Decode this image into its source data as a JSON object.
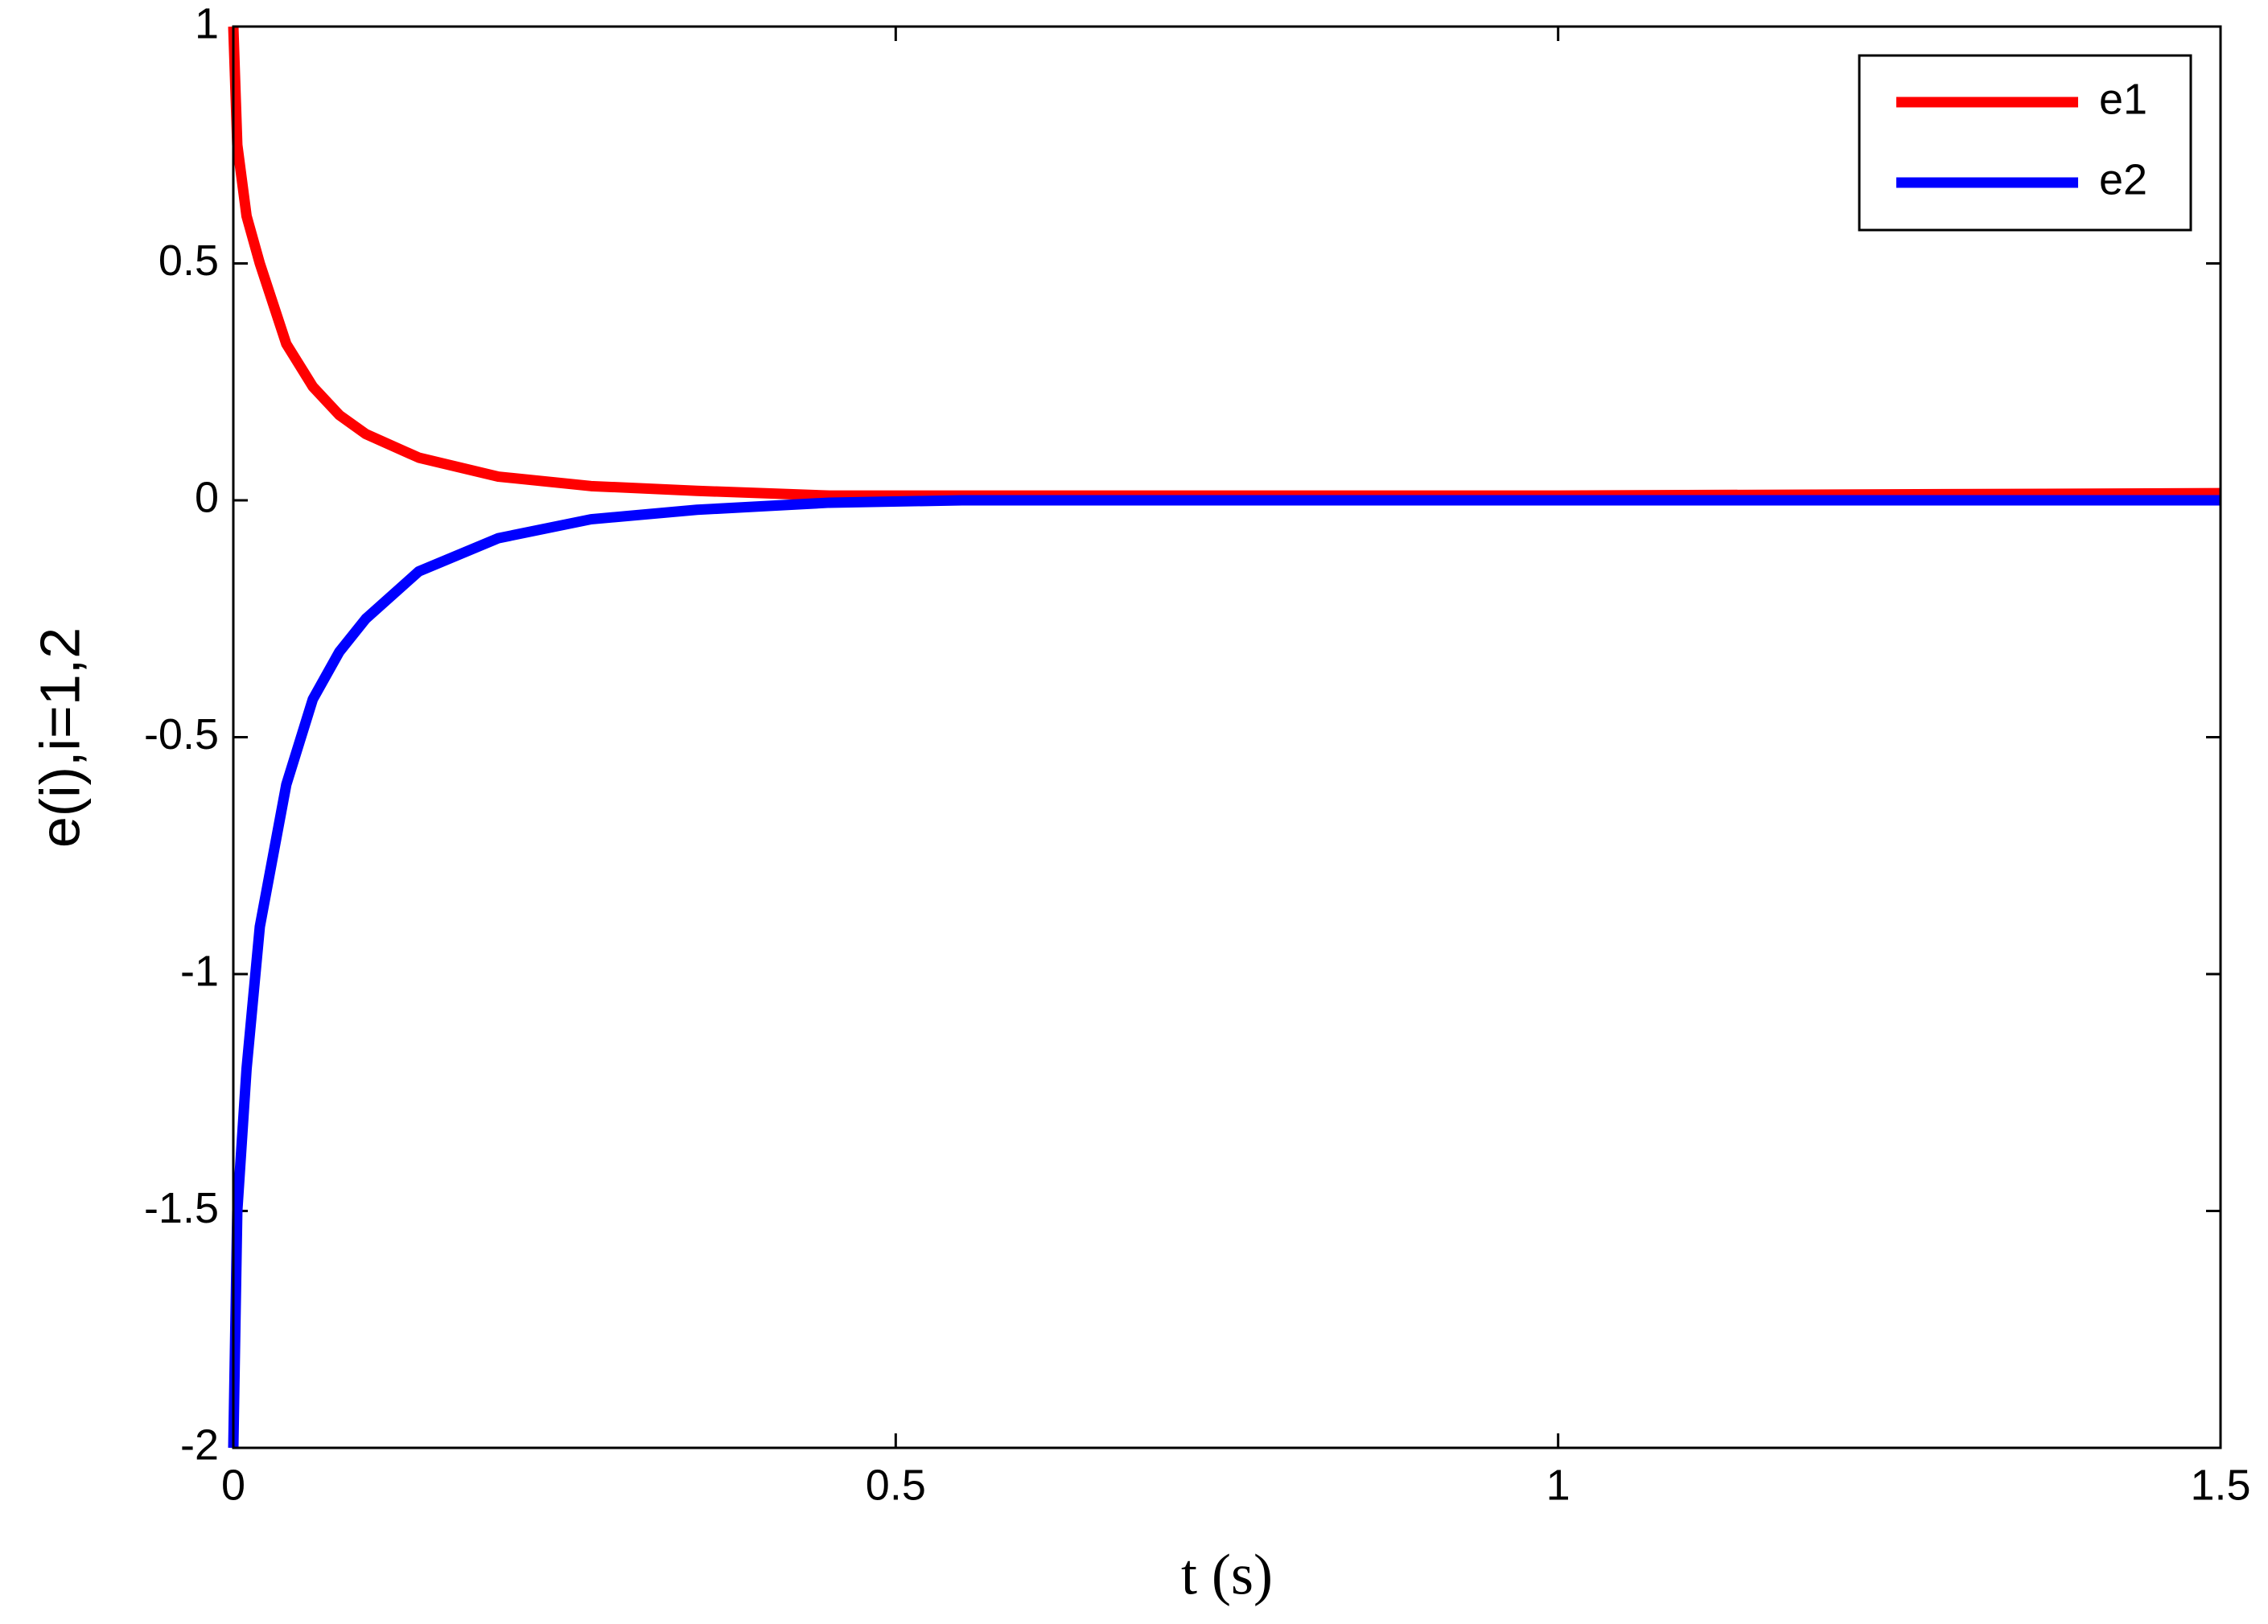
{
  "chart_data": {
    "type": "line",
    "xlabel": "t (s)",
    "ylabel": "e(i),i=1,2",
    "x": [
      0,
      0.003,
      0.01,
      0.02,
      0.04,
      0.06,
      0.08,
      0.1,
      0.14,
      0.2,
      0.27,
      0.35,
      0.45,
      0.55,
      1.0,
      1.5
    ],
    "series": [
      {
        "name": "e1",
        "color": "#ff0000",
        "values": [
          1,
          0.75,
          0.6,
          0.5,
          0.33,
          0.24,
          0.18,
          0.14,
          0.09,
          0.05,
          0.03,
          0.02,
          0.01,
          0.01,
          0.01,
          0.015
        ]
      },
      {
        "name": "e2",
        "color": "#0000ff",
        "values": [
          -2,
          -1.5,
          -1.2,
          -0.9,
          -0.6,
          -0.42,
          -0.32,
          -0.25,
          -0.15,
          -0.08,
          -0.04,
          -0.02,
          -0.005,
          0,
          0,
          0
        ]
      }
    ],
    "xlim": [
      0,
      1.5
    ],
    "xticks": [
      0,
      0.5,
      1,
      1.5
    ],
    "ylim": [
      -2,
      1
    ],
    "yticks": [
      -2,
      -1.5,
      -1,
      -0.5,
      0,
      0.5,
      1
    ],
    "legend": "upper right",
    "grid": false
  }
}
